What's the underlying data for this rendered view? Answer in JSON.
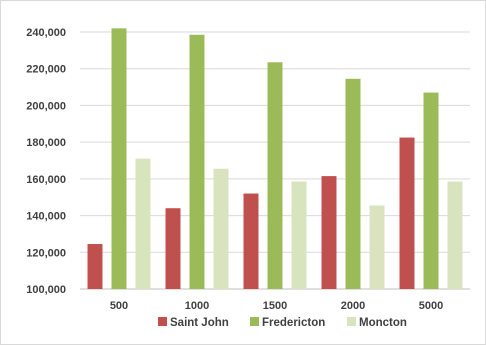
{
  "chart_data": {
    "type": "bar",
    "title": "",
    "xlabel": "",
    "ylabel": "",
    "categories": [
      "500",
      "1000",
      "1500",
      "2000",
      "5000"
    ],
    "series": [
      {
        "name": "Saint John",
        "color": "#c0504d",
        "values": [
          124500,
          144000,
          152000,
          161500,
          182500
        ]
      },
      {
        "name": "Fredericton",
        "color": "#9bbb59",
        "values": [
          242000,
          238500,
          223500,
          214500,
          207000
        ]
      },
      {
        "name": "Moncton",
        "color": "#d7e4bd",
        "values": [
          171000,
          165500,
          158500,
          145500,
          158500
        ]
      }
    ],
    "ylim": [
      100000,
      240000
    ],
    "yticks": [
      100000,
      120000,
      140000,
      160000,
      180000,
      200000,
      220000,
      240000
    ],
    "ytick_labels": [
      "100,000",
      "120,000",
      "140,000",
      "160,000",
      "180,000",
      "200,000",
      "220,000",
      "240,000"
    ],
    "grid": true,
    "legend_position": "bottom"
  }
}
